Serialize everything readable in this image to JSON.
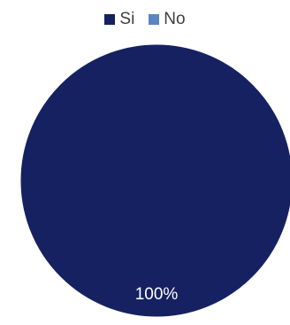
{
  "chart_data": {
    "type": "pie",
    "categories": [
      "Si",
      "No"
    ],
    "values": [
      100,
      0
    ],
    "colors": [
      "#152161",
      "#5b84c4"
    ],
    "data_labels": [
      "100%",
      ""
    ],
    "legend_position": "top"
  }
}
